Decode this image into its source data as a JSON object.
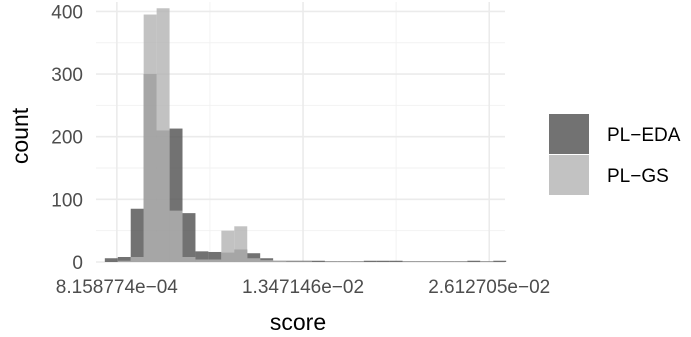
{
  "chart_data": {
    "type": "bar",
    "subtype": "overlaid-histogram",
    "xlabel": "score",
    "ylabel": "count",
    "x_ticks": [
      {
        "value": 0.0008158774,
        "label": "8.158774e−04"
      },
      {
        "value": 0.01347146,
        "label": "1.347146e−02"
      },
      {
        "value": 0.02612705,
        "label": "2.612705e−02"
      }
    ],
    "y_ticks": [
      {
        "value": 0,
        "label": "0"
      },
      {
        "value": 100,
        "label": "100"
      },
      {
        "value": 200,
        "label": "200"
      },
      {
        "value": 300,
        "label": "300"
      },
      {
        "value": 400,
        "label": "400"
      }
    ],
    "ylim": [
      0,
      415
    ],
    "xlim": [
      -0.0006,
      0.0272
    ],
    "grid": true,
    "legend_position": "right",
    "bins": [
      [
        0.0,
        0.00088
      ],
      [
        0.00088,
        0.00176
      ],
      [
        0.00176,
        0.00264
      ],
      [
        0.00264,
        0.00352
      ],
      [
        0.00352,
        0.0044
      ],
      [
        0.0044,
        0.00528
      ],
      [
        0.00528,
        0.00616
      ],
      [
        0.00616,
        0.00704
      ],
      [
        0.00704,
        0.00792
      ],
      [
        0.00792,
        0.0088
      ],
      [
        0.0088,
        0.00968
      ],
      [
        0.00968,
        0.01056
      ],
      [
        0.01056,
        0.01144
      ],
      [
        0.01144,
        0.01232
      ],
      [
        0.01232,
        0.0132
      ],
      [
        0.0132,
        0.01408
      ],
      [
        0.01408,
        0.01496
      ],
      [
        0.01496,
        0.01584
      ],
      [
        0.01584,
        0.01672
      ],
      [
        0.01672,
        0.0176
      ],
      [
        0.0176,
        0.01848
      ],
      [
        0.01848,
        0.01936
      ],
      [
        0.01936,
        0.02024
      ],
      [
        0.02024,
        0.02112
      ],
      [
        0.02112,
        0.022
      ],
      [
        0.022,
        0.02288
      ],
      [
        0.02288,
        0.02376
      ],
      [
        0.02376,
        0.02464
      ],
      [
        0.02464,
        0.02552
      ],
      [
        0.02552,
        0.0264
      ],
      [
        0.0264,
        0.02728
      ]
    ],
    "series": [
      {
        "name": "PL−EDA",
        "color": "#595959",
        "opacity": 0.85,
        "values": [
          6,
          8,
          85,
          300,
          210,
          213,
          78,
          17,
          16,
          15,
          20,
          14,
          6,
          2,
          2,
          2,
          2,
          1,
          1,
          1,
          2,
          2,
          2,
          1,
          1,
          1,
          1,
          1,
          2,
          1,
          2
        ]
      },
      {
        "name": "PL−GS",
        "color": "#b3b3b3",
        "opacity": 0.8,
        "values": [
          0,
          2,
          8,
          395,
          405,
          82,
          8,
          4,
          4,
          50,
          57,
          6,
          3,
          2,
          1,
          1,
          0,
          0,
          0,
          0,
          0,
          0,
          0,
          0,
          0,
          0,
          0,
          0,
          0,
          0,
          0
        ]
      }
    ]
  }
}
